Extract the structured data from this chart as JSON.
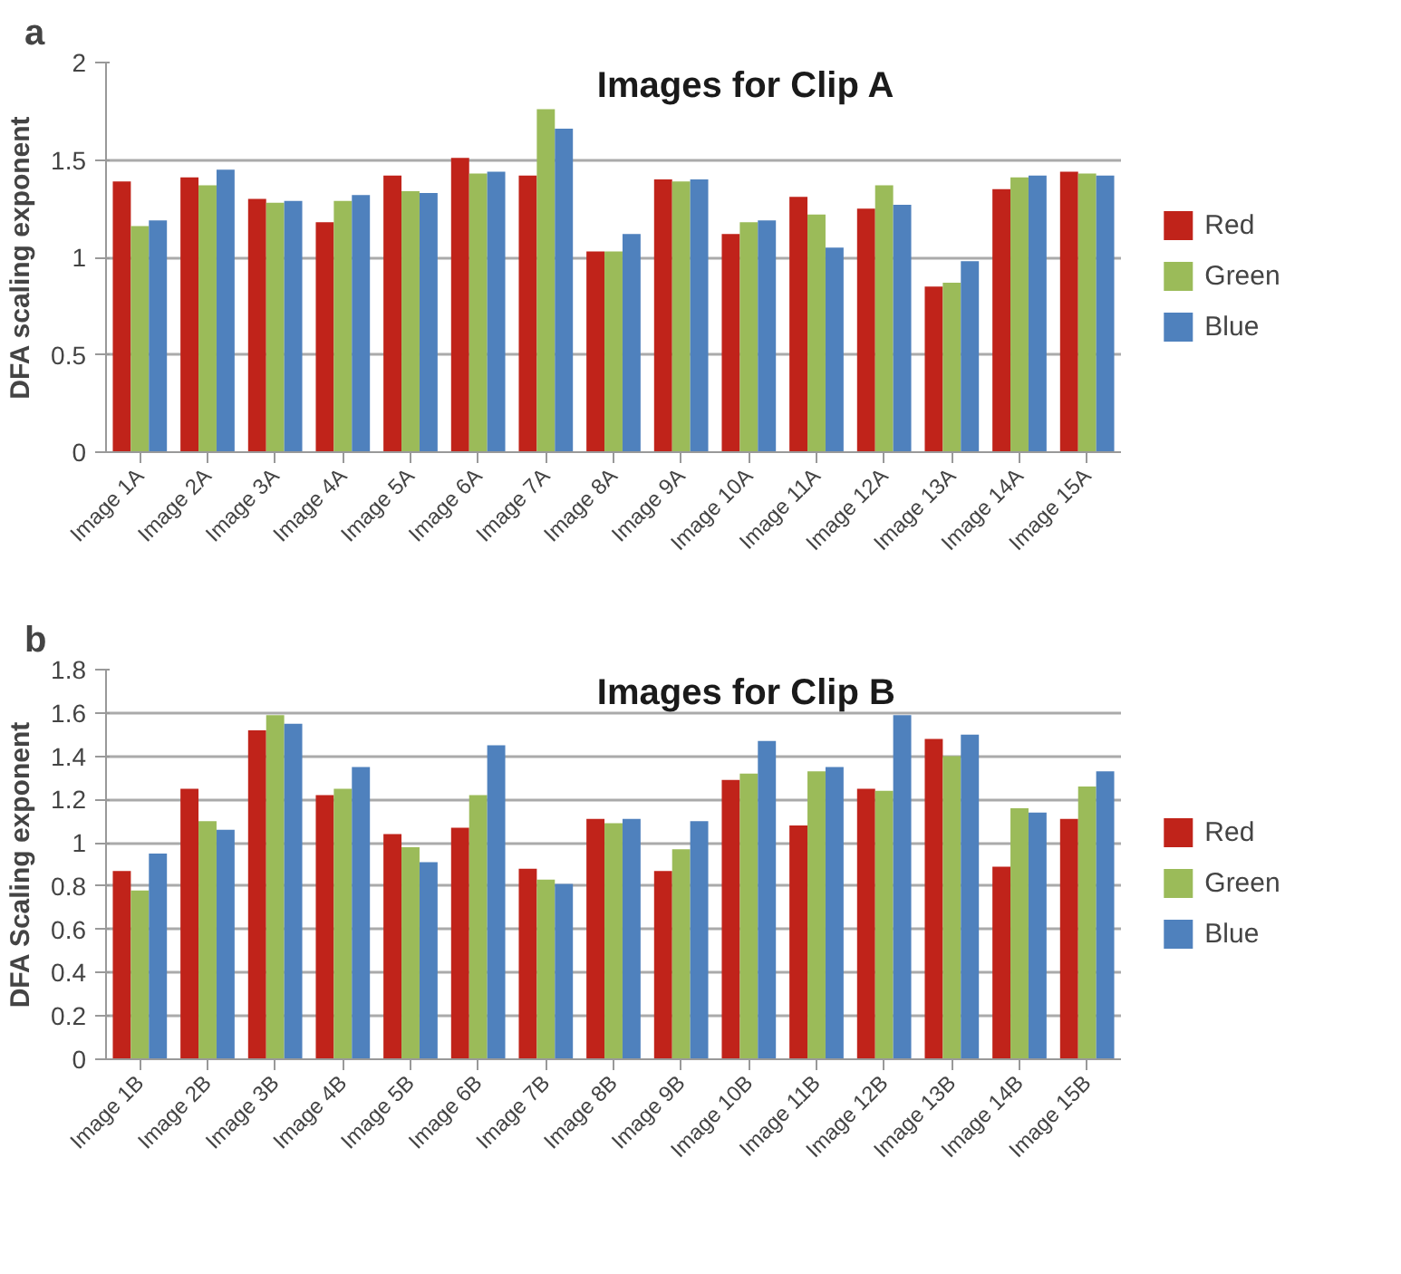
{
  "chart_data": [
    {
      "type": "bar",
      "title": "Images for Clip A",
      "ylabel": "DFA scaling exponent",
      "annotations": [
        "a"
      ],
      "categories": [
        "Image 1A",
        "Image 2A",
        "Image 3A",
        "Image 4A",
        "Image 5A",
        "Image 6A",
        "Image 7A",
        "Image 8A",
        "Image 9A",
        "Image 10A",
        "Image 11A",
        "Image 12A",
        "Image 13A",
        "Image 14A",
        "Image 15A"
      ],
      "series": [
        {
          "name": "Red",
          "color": "#c0231a",
          "values": [
            1.39,
            1.41,
            1.3,
            1.18,
            1.42,
            1.51,
            1.42,
            1.03,
            1.4,
            1.12,
            1.31,
            1.25,
            0.85,
            1.35,
            1.44
          ]
        },
        {
          "name": "Green",
          "color": "#9bbb59",
          "values": [
            1.16,
            1.37,
            1.28,
            1.29,
            1.34,
            1.43,
            1.76,
            1.03,
            1.39,
            1.18,
            1.22,
            1.37,
            0.87,
            1.41,
            1.43
          ]
        },
        {
          "name": "Blue",
          "color": "#4f81bd",
          "values": [
            1.19,
            1.45,
            1.29,
            1.32,
            1.33,
            1.44,
            1.66,
            1.12,
            1.4,
            1.19,
            1.05,
            1.27,
            0.98,
            1.42,
            1.42
          ]
        }
      ],
      "ylim": [
        0,
        2
      ],
      "yticks": [
        0,
        0.5,
        1,
        1.5,
        2
      ],
      "grid": "y",
      "legend": "right"
    },
    {
      "type": "bar",
      "title": "Images for Clip B",
      "ylabel": "DFA Scaling exponent",
      "annotations": [
        "b"
      ],
      "categories": [
        "Image 1B",
        "Image 2B",
        "Image 3B",
        "Image 4B",
        "Image 5B",
        "Image 6B",
        "Image 7B",
        "Image 8B",
        "Image 9B",
        "Image 10B",
        "Image 11B",
        "Image 12B",
        "Image 13B",
        "Image 14B",
        "Image 15B"
      ],
      "series": [
        {
          "name": "Red",
          "color": "#c0231a",
          "values": [
            0.87,
            1.25,
            1.52,
            1.22,
            1.04,
            1.07,
            0.88,
            1.11,
            0.87,
            1.29,
            1.08,
            1.25,
            1.48,
            0.89,
            1.11
          ]
        },
        {
          "name": "Green",
          "color": "#9bbb59",
          "values": [
            0.78,
            1.1,
            1.59,
            1.25,
            0.98,
            1.22,
            0.83,
            1.09,
            0.97,
            1.32,
            1.33,
            1.24,
            1.4,
            1.16,
            1.26
          ]
        },
        {
          "name": "Blue",
          "color": "#4f81bd",
          "values": [
            0.95,
            1.06,
            1.55,
            1.35,
            0.91,
            1.45,
            0.81,
            1.11,
            1.1,
            1.47,
            1.35,
            1.59,
            1.5,
            1.14,
            1.33
          ]
        }
      ],
      "ylim": [
        0,
        1.8
      ],
      "yticks": [
        0,
        0.2,
        0.4,
        0.6,
        0.8,
        1,
        1.2,
        1.4,
        1.6,
        1.8
      ],
      "grid": "y",
      "legend": "right"
    }
  ]
}
